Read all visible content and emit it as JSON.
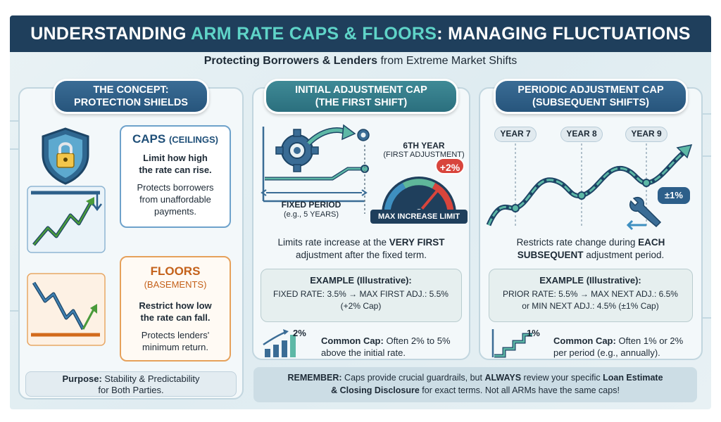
{
  "header": {
    "title_part1": "UNDERSTANDING ",
    "title_highlight": "ARM RATE CAPS & FLOORS",
    "title_part2": ": MANAGING FLUCTUATIONS",
    "subtitle_bold": "Protecting Borrowers & Lenders",
    "subtitle_rest": " from Extreme Market Shifts"
  },
  "concept": {
    "head_line1": "THE CONCEPT:",
    "head_line2": "PROTECTION SHIELDS",
    "caps_title": "CAPS",
    "caps_sub": "(CEILINGS)",
    "caps_line1": "Limit how high",
    "caps_line2": "the rate can rise.",
    "caps_desc1": "Protects borrowers",
    "caps_desc2": "from unaffordable",
    "caps_desc3": "payments.",
    "floors_title": "FLOORS",
    "floors_sub": "(BASEMENTS)",
    "floors_line1": "Restrict how low",
    "floors_line2": "the rate can fall.",
    "floors_desc1": "Protects lenders'",
    "floors_desc2": "minimum return.",
    "purpose_label": "Purpose:",
    "purpose_text1": " Stability & Predictability",
    "purpose_text2": "for Both Parties."
  },
  "initial": {
    "head_line1": "INITIAL ADJUSTMENT CAP",
    "head_line2": "(THE FIRST SHIFT)",
    "sixth_year": "6TH YEAR",
    "first_adj": "(FIRST ADJUSTMENT)",
    "fixed_period": "FIXED PERIOD",
    "fixed_eg": "(e.g., 5 YEARS)",
    "plus_badge": "+2%",
    "max_label": "MAX INCREASE LIMIT",
    "desc_a": "Limits rate increase at the ",
    "desc_b": "VERY FIRST",
    "desc_c": "adjustment after the fixed term.",
    "ex_title": "EXAMPLE (Illustrative):",
    "ex_line1": "FIXED RATE: 3.5% → MAX FIRST ADJ.: 5.5%",
    "ex_line2": "(+2% Cap)",
    "bar_badge": "2%",
    "common_label": "Common Cap:",
    "common_text1": " Often 2% to 5%",
    "common_text2": "above the initial rate."
  },
  "periodic": {
    "head_line1": "PERIODIC ADJUSTMENT CAP",
    "head_line2": "(SUBSEQUENT SHIFTS)",
    "years": [
      "YEAR 7",
      "YEAR 8",
      "YEAR 9"
    ],
    "wrench_badge": "±1%",
    "desc_a": "Restricts rate change during ",
    "desc_b": "EACH",
    "desc_c": "SUBSEQUENT",
    "desc_d": " adjustment period.",
    "ex_title": "EXAMPLE (Illustrative):",
    "ex_line1": "PRIOR RATE: 5.5% → MAX NEXT ADJ.: 6.5%",
    "ex_line2": "or MIN NEXT ADJ.: 4.5% (±1% Cap)",
    "step_badge": "1%",
    "common_label": "Common Cap:",
    "common_text1": " Often 1% or 2%",
    "common_text2": "per period (e.g., annually)."
  },
  "remember": {
    "label": "REMEMBER:",
    "text1": " Caps provide crucial guardrails, but ",
    "always": "ALWAYS",
    "text2": " review your specific ",
    "loan": "Loan Estimate",
    "closing": "& Closing Disclosure",
    "text3": " for exact terms. Not all ARMs have the same caps!"
  },
  "colors": {
    "navy": "#1f3f5c",
    "teal_accent": "#5fd4c8",
    "caps_blue": "#2d5f8a",
    "floors_orange": "#d26a1c",
    "gauge_red": "#d8453c",
    "chart_green": "#4a9a3a"
  }
}
